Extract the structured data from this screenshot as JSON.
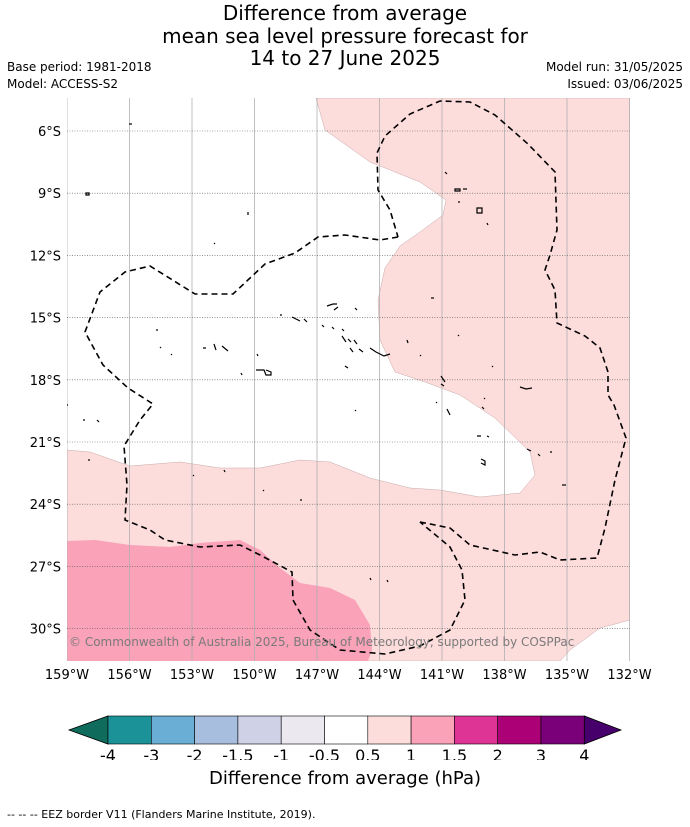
{
  "title": {
    "line1": "Difference from average",
    "line2": "mean sea level pressure forecast for",
    "line3": "14 to 27 June 2025"
  },
  "meta": {
    "base_period": "Base period: 1981-2018",
    "model": "Model: ACCESS-S2",
    "model_run": "Model run: 31/05/2025",
    "issued": "Issued: 03/06/2025"
  },
  "map": {
    "lat_labels": [
      "6°S",
      "9°S",
      "12°S",
      "15°S",
      "18°S",
      "21°S",
      "24°S",
      "27°S",
      "30°S"
    ],
    "lon_labels": [
      "159°W",
      "156°W",
      "153°W",
      "150°W",
      "147°W",
      "144°W",
      "141°W",
      "138°W",
      "135°W",
      "132°W"
    ],
    "copyright": "© Commonwealth of Australia 2025, Bureau of Meteorology, supported by COSPPac",
    "fill_colors": {
      "band_0.5_1": "#fddcdc",
      "band_1_1.5": "#f9a2b8"
    },
    "eez_line_color": "#000000"
  },
  "colorbar": {
    "ticks": [
      "-4",
      "-3",
      "-2",
      "-1.5",
      "-1",
      "-0.5",
      "0.5",
      "1",
      "1.5",
      "2",
      "3",
      "4"
    ],
    "colors": [
      "#1b9198",
      "#6aaed5",
      "#a7bedf",
      "#cfd1e6",
      "#ebe8ef",
      "#ffffff",
      "#fddcdc",
      "#f9a2b8",
      "#dd3496",
      "#ac0077",
      "#7a007a"
    ],
    "under_color": "#0f6b5c",
    "over_color": "#47006b",
    "label": "Difference from average (hPa)"
  },
  "footer": "--  --  -- EEZ border V11 (Flanders Marine Institute, 2019)."
}
